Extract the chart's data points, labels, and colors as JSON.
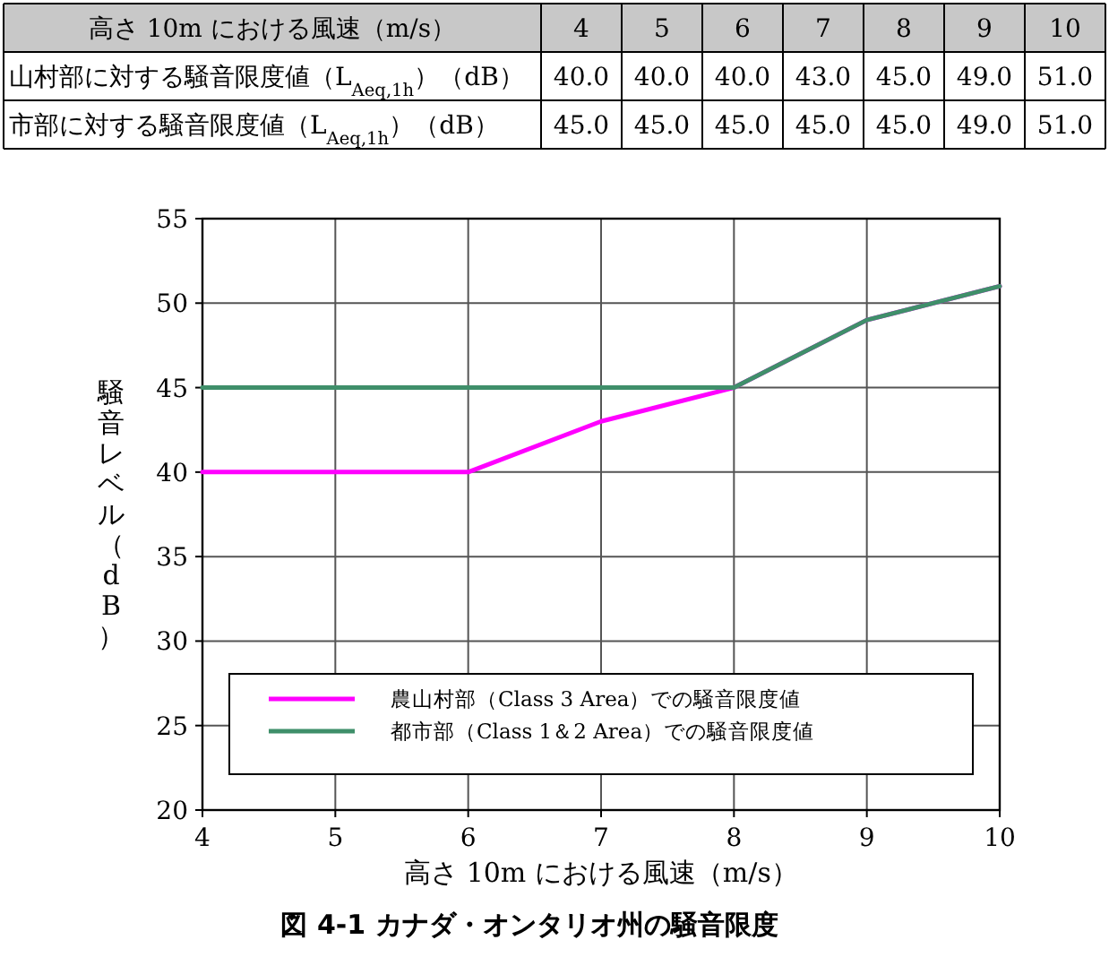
{
  "chart_data": [
    {
      "type": "heatmap",
      "xlabel": "高さ 10m における風速（m/s）",
      "categories": [
        "4",
        "5",
        "6",
        "7",
        "8",
        "9",
        "10"
      ],
      "y_categories": [
        "山村部に対する騒音限度値（L$_{Aeq,1h}$）（dB）",
        "市部に対する騒音限度値（L$_{Aeq,1h}$）（dB）"
      ],
      "cells": [
        [
          40,
          40,
          40,
          43,
          45,
          49,
          51
        ],
        [
          45,
          45,
          45,
          45,
          45,
          49,
          51
        ]
      ],
      "cell_labels": [
        [
          "40.0",
          "40.0",
          "40.0",
          "43.0",
          "45.0",
          "49.0",
          "51.0"
        ],
        [
          "45.0",
          "45.0",
          "45.0",
          "45.0",
          "45.0",
          "49.0",
          "51.0"
        ]
      ]
    },
    {
      "type": "line",
      "title": "図 4-1 カナダ・オンタリオ州の騒音限度",
      "xlabel": "高さ 10m における風速（m/s）",
      "ylabel": "騒音レベル（dB）",
      "x": [
        4,
        5,
        6,
        7,
        8,
        9,
        10
      ],
      "xlim": [
        4,
        10
      ],
      "xticks": [
        4,
        5,
        6,
        7,
        8,
        9,
        10
      ],
      "ylim": [
        20,
        55
      ],
      "yticks": [
        20,
        25,
        30,
        35,
        40,
        45,
        50,
        55
      ],
      "grid": true,
      "legend": "bottom",
      "line_style": "solid",
      "series": [
        {
          "name": "農山村部（Class 3 Area）での騒音限度値",
          "color": "#ff00ff",
          "values": [
            40,
            40,
            40,
            43,
            45,
            49,
            51
          ]
        },
        {
          "name": "都市部（Class 1＆2 Area）での騒音限度値",
          "color": "#3f8f6a",
          "values": [
            45,
            45,
            45,
            45,
            45,
            49,
            51
          ]
        }
      ]
    }
  ]
}
